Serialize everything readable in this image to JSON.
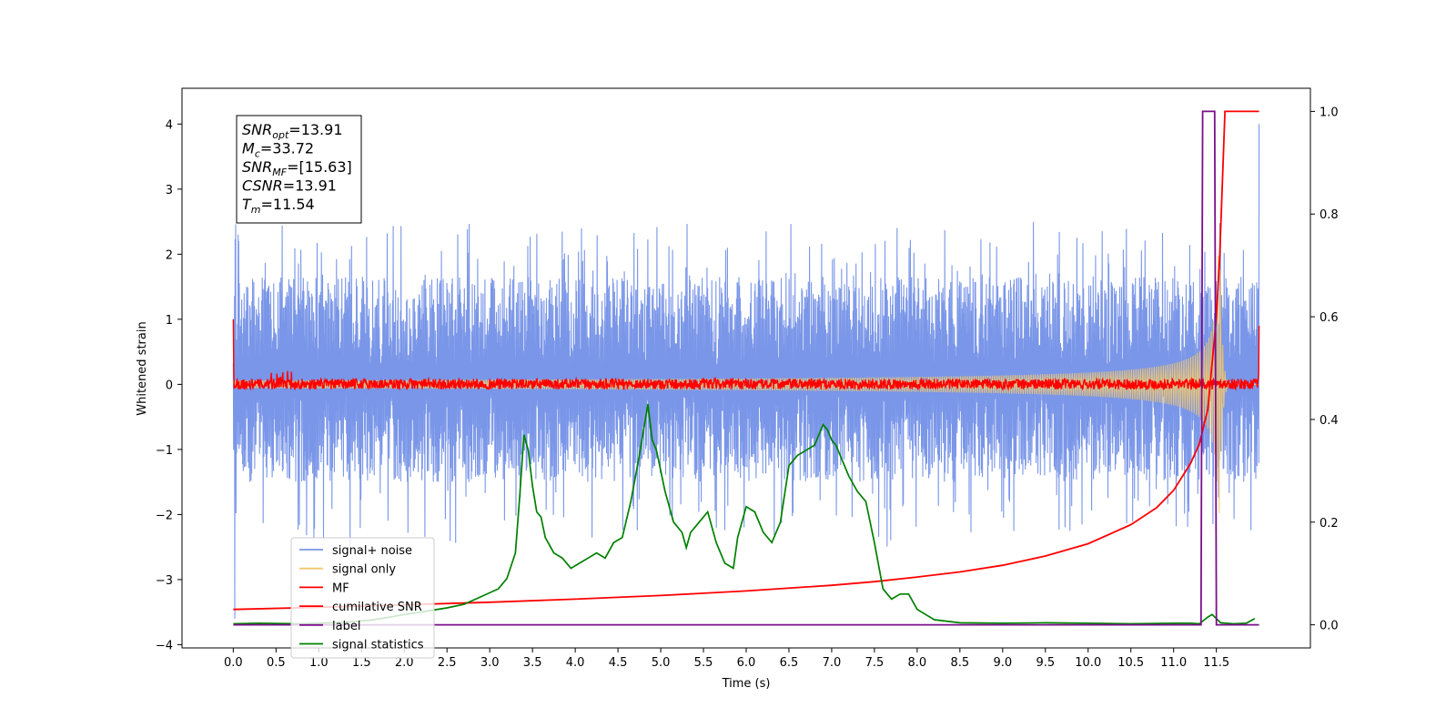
{
  "chart_data": {
    "type": "line",
    "xlabel": "Time (s)",
    "ylabel": "Whitened strain",
    "xlim": [
      -0.6,
      12.6
    ],
    "ylim": [
      -4.05,
      4.55
    ],
    "y2lim": [
      -0.045,
      1.045
    ],
    "grid": false,
    "legend_position": "lower-left",
    "x_ticks": [
      "0.0",
      "0.5",
      "1.0",
      "1.5",
      "2.0",
      "2.5",
      "3.0",
      "3.5",
      "4.0",
      "4.5",
      "5.0",
      "5.5",
      "6.0",
      "6.5",
      "7.0",
      "7.5",
      "8.0",
      "8.5",
      "9.0",
      "9.5",
      "10.0",
      "10.5",
      "11.0",
      "11.5"
    ],
    "y_ticks": [
      "4",
      "3",
      "2",
      "1",
      "0",
      "−1",
      "−2",
      "−3",
      "−4"
    ],
    "y2_ticks": [
      "1.0",
      "0.8",
      "0.6",
      "0.4",
      "0.2",
      "0.0"
    ],
    "annotation": {
      "lines": [
        {
          "sym": "SNR",
          "sub": "opt",
          "value": "=13.91"
        },
        {
          "sym": "M",
          "sub": "c",
          "value": "=33.72"
        },
        {
          "sym": "SNR",
          "sub": "MF",
          "value": "=[15.63]"
        },
        {
          "sym": "CSNR",
          "sub": "",
          "value": "=13.91"
        },
        {
          "sym": "T",
          "sub": "m",
          "value": "=11.54"
        }
      ]
    },
    "series": [
      {
        "name": "signal+ noise",
        "color": "#7a96e8",
        "axis": "left",
        "kind": "noise",
        "x_range": [
          0,
          12
        ],
        "typical_range": [
          -1.5,
          1.8
        ],
        "peak_range": [
          -2.5,
          2.7
        ]
      },
      {
        "name": "signal only",
        "color": "#f2c76e",
        "axis": "left",
        "kind": "chirp",
        "x_range": [
          0,
          12
        ],
        "peak_time": 11.54,
        "peak_amplitude": 2.3
      },
      {
        "name": "MF",
        "color": "#ff0000",
        "axis": "left",
        "kind": "noise",
        "x_range": [
          0,
          12
        ],
        "typical_range": [
          -0.07,
          0.08
        ],
        "endpoints": [
          1.0,
          0.9
        ]
      },
      {
        "name": "cumilative SNR",
        "color": "#ff0000",
        "axis": "right",
        "x": [
          0.0,
          1.0,
          2.0,
          3.0,
          4.0,
          5.0,
          6.0,
          7.0,
          7.5,
          8.0,
          8.5,
          9.0,
          9.5,
          10.0,
          10.5,
          10.8,
          11.0,
          11.2,
          11.3,
          11.4,
          11.5,
          11.54,
          11.6,
          12.0
        ],
        "y": [
          0.03,
          0.034,
          0.039,
          0.044,
          0.05,
          0.057,
          0.066,
          0.077,
          0.084,
          0.093,
          0.103,
          0.116,
          0.134,
          0.158,
          0.195,
          0.228,
          0.262,
          0.315,
          0.352,
          0.42,
          0.6,
          0.72,
          1.0,
          1.0
        ]
      },
      {
        "name": "label",
        "color": "#7a0f8a",
        "axis": "right",
        "x": [
          0,
          11.32,
          11.34,
          11.48,
          11.5,
          12.0
        ],
        "y": [
          0,
          0,
          1,
          1,
          0,
          0
        ]
      },
      {
        "name": "signal statistics",
        "color": "#008000",
        "axis": "right",
        "x": [
          0.0,
          0.3,
          0.8,
          1.3,
          1.6,
          1.8,
          2.0,
          2.2,
          2.5,
          2.7,
          2.9,
          3.1,
          3.2,
          3.3,
          3.35,
          3.4,
          3.45,
          3.5,
          3.55,
          3.6,
          3.65,
          3.75,
          3.85,
          3.95,
          4.05,
          4.15,
          4.25,
          4.35,
          4.45,
          4.55,
          4.65,
          4.75,
          4.85,
          4.9,
          4.95,
          5.05,
          5.15,
          5.25,
          5.3,
          5.35,
          5.45,
          5.55,
          5.65,
          5.75,
          5.85,
          5.9,
          6.0,
          6.1,
          6.2,
          6.3,
          6.4,
          6.5,
          6.6,
          6.7,
          6.8,
          6.9,
          6.95,
          7.0,
          7.05,
          7.1,
          7.2,
          7.3,
          7.4,
          7.5,
          7.6,
          7.7,
          7.8,
          7.9,
          8.0,
          8.2,
          8.5,
          9.0,
          9.5,
          10.0,
          10.5,
          11.0,
          11.2,
          11.3,
          11.4,
          11.45,
          11.55,
          11.7,
          11.85,
          11.95
        ],
        "y": [
          0.002,
          0.003,
          0.002,
          0.005,
          0.009,
          0.014,
          0.02,
          0.025,
          0.033,
          0.04,
          0.055,
          0.07,
          0.09,
          0.14,
          0.25,
          0.37,
          0.34,
          0.27,
          0.22,
          0.21,
          0.17,
          0.14,
          0.13,
          0.11,
          0.12,
          0.13,
          0.14,
          0.13,
          0.16,
          0.17,
          0.24,
          0.33,
          0.43,
          0.36,
          0.34,
          0.26,
          0.2,
          0.18,
          0.15,
          0.18,
          0.2,
          0.22,
          0.16,
          0.12,
          0.11,
          0.17,
          0.23,
          0.22,
          0.18,
          0.16,
          0.2,
          0.31,
          0.33,
          0.34,
          0.35,
          0.39,
          0.38,
          0.36,
          0.35,
          0.33,
          0.29,
          0.26,
          0.24,
          0.16,
          0.07,
          0.05,
          0.06,
          0.06,
          0.03,
          0.01,
          0.004,
          0.003,
          0.004,
          0.003,
          0.002,
          0.003,
          0.003,
          0.002,
          0.015,
          0.02,
          0.004,
          0.002,
          0.003,
          0.012
        ]
      }
    ]
  }
}
